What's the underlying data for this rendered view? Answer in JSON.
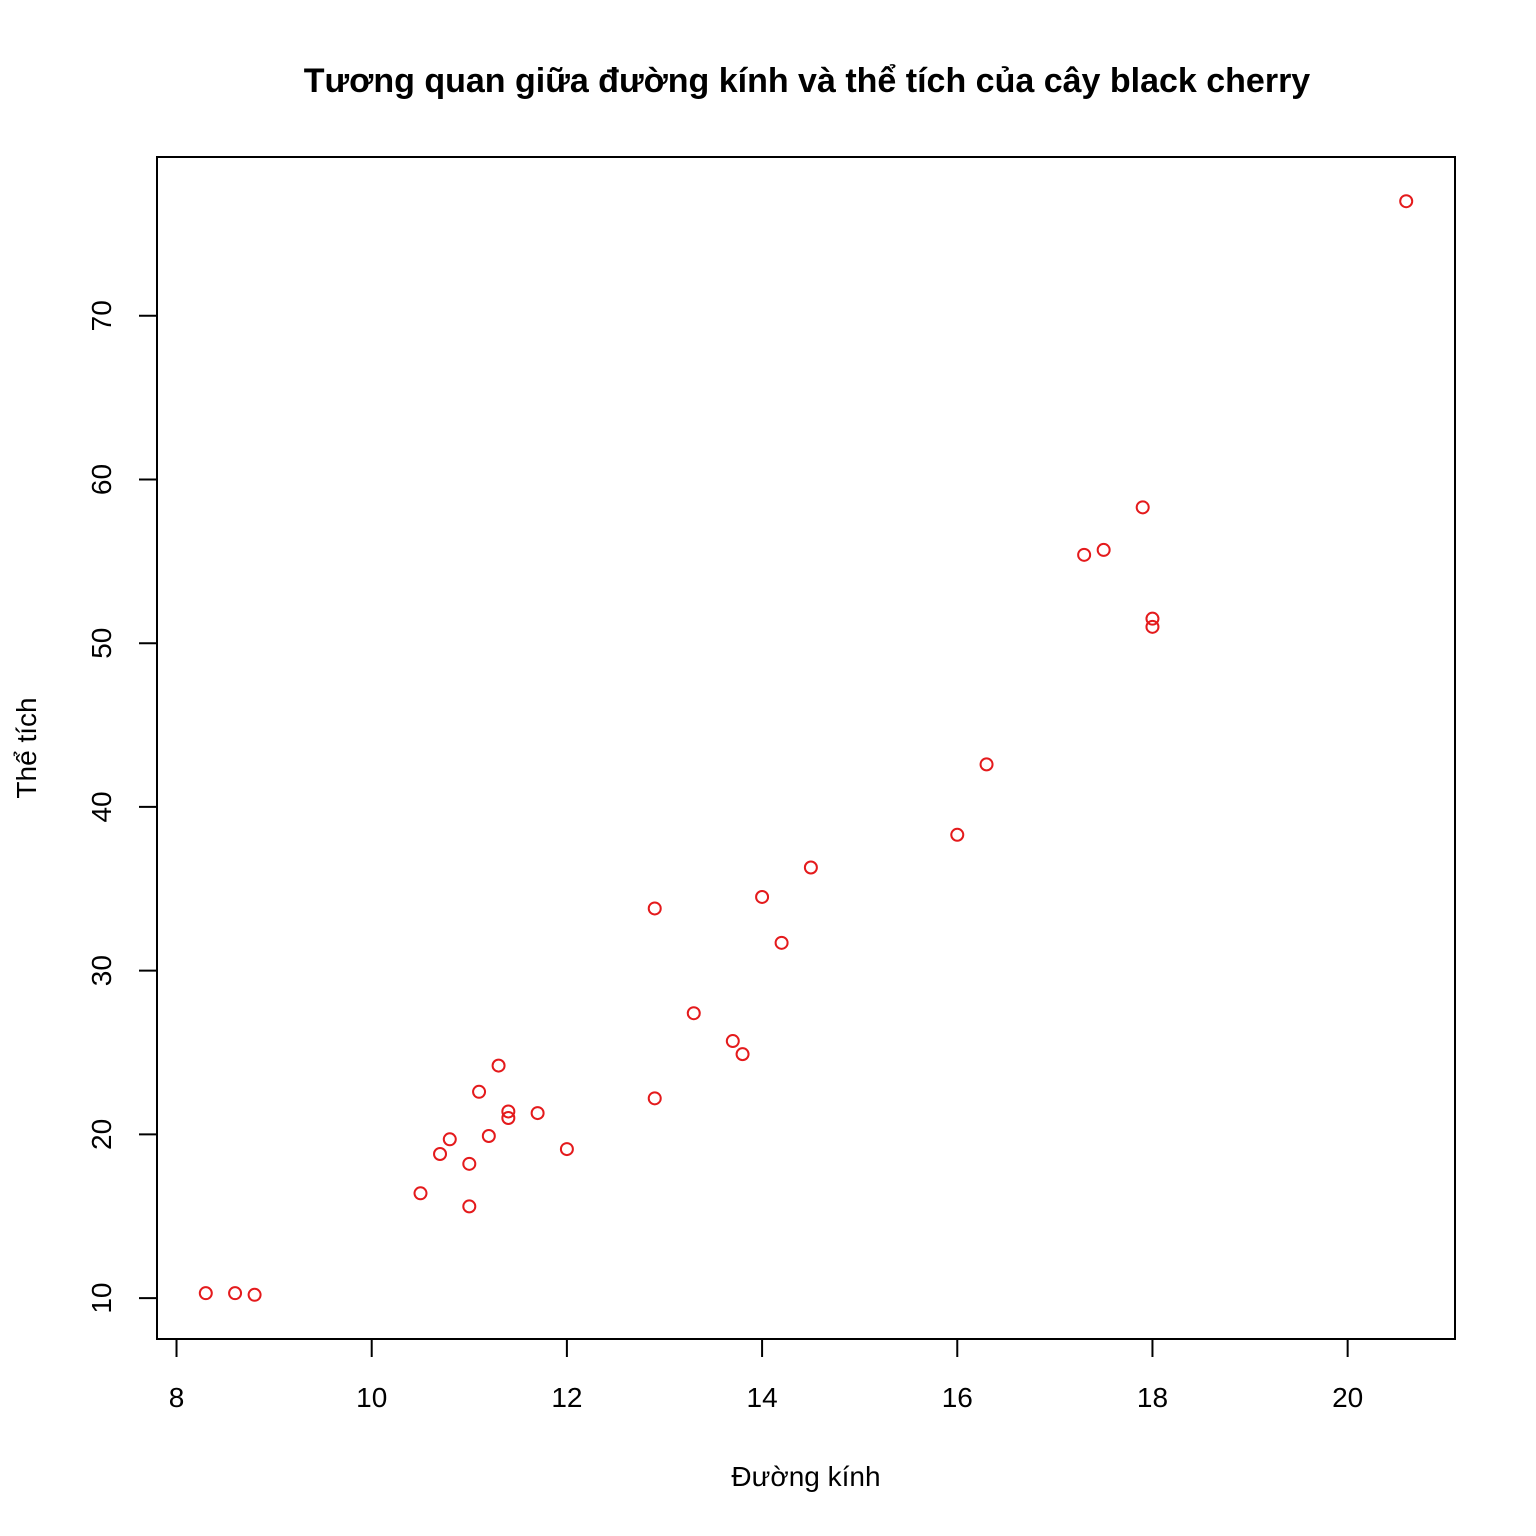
{
  "chart_data": {
    "type": "scatter",
    "title": "Tương quan giữa đường kính và thể tích của cây black cherry",
    "xlabel": "Đường kính",
    "ylabel": "Thể tích",
    "xlim": [
      7.8,
      21.1
    ],
    "ylim": [
      7.5,
      79.7
    ],
    "x_ticks": [
      8,
      10,
      12,
      14,
      16,
      18,
      20
    ],
    "y_ticks": [
      10,
      20,
      30,
      40,
      50,
      60,
      70
    ],
    "grid": false,
    "legend": "none",
    "point_color": "#E41A1C",
    "marker": "open-circle",
    "series": [
      {
        "x": [
          8.3,
          8.6,
          8.8,
          10.5,
          10.7,
          10.8,
          11.0,
          11.0,
          11.1,
          11.2,
          11.3,
          11.4,
          11.4,
          11.7,
          12.0,
          12.9,
          12.9,
          13.3,
          13.7,
          13.8,
          14.0,
          14.2,
          14.5,
          16.0,
          16.3,
          17.3,
          17.5,
          17.9,
          18.0,
          18.0,
          20.6
        ],
        "y": [
          10.3,
          10.3,
          10.2,
          16.4,
          18.8,
          19.7,
          15.6,
          18.2,
          22.6,
          19.9,
          24.2,
          21.0,
          21.4,
          21.3,
          19.1,
          22.2,
          33.8,
          27.4,
          25.7,
          24.9,
          34.5,
          31.7,
          36.3,
          38.3,
          42.6,
          55.4,
          55.7,
          58.3,
          51.5,
          51.0,
          77.0
        ]
      }
    ]
  }
}
